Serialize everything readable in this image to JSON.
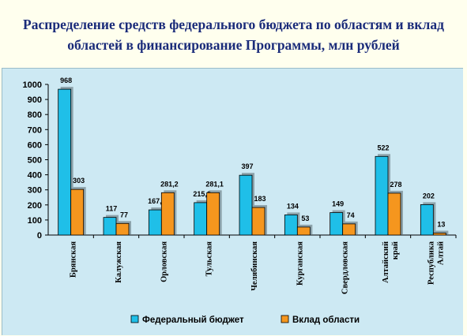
{
  "slide": {
    "title_line1": "Распределение средств федерального бюджета по областям и вклад",
    "title_line2": "областей в финансирование Программы, млн рублей"
  },
  "chart_data": {
    "type": "bar",
    "title": "Распределение средств федерального бюджета по областям и вклад областей в финансирование Программы, млн рублей",
    "categories": [
      [
        "Брянская"
      ],
      [
        "Калужская"
      ],
      [
        "Орловская"
      ],
      [
        "Тульская"
      ],
      [
        "Челябинская"
      ],
      [
        "Курганская"
      ],
      [
        "Свердловская"
      ],
      [
        "Алтайский",
        "край"
      ],
      [
        "Республика",
        "Алтай"
      ]
    ],
    "series": [
      {
        "name": "Федеральный бюджет",
        "color": "#1fbfe8",
        "values": [
          968,
          117,
          167.2,
          215.2,
          397,
          134,
          149,
          522,
          202
        ],
        "labels": [
          "968",
          "117",
          "167,2",
          "215,2",
          "397",
          "134",
          "149",
          "522",
          "202"
        ]
      },
      {
        "name": "Вклад области",
        "color": "#f5961e",
        "values": [
          303,
          77,
          281.2,
          281.1,
          183,
          53,
          74,
          278,
          13
        ],
        "labels": [
          "303",
          "77",
          "281,2",
          "281,1",
          "183",
          "53",
          "74",
          "278",
          "13"
        ]
      }
    ],
    "ylim": [
      0,
      1000
    ],
    "yticks": [
      0,
      100,
      200,
      300,
      400,
      500,
      600,
      700,
      800,
      900,
      1000
    ],
    "grid": false,
    "legend_position": "bottom"
  }
}
